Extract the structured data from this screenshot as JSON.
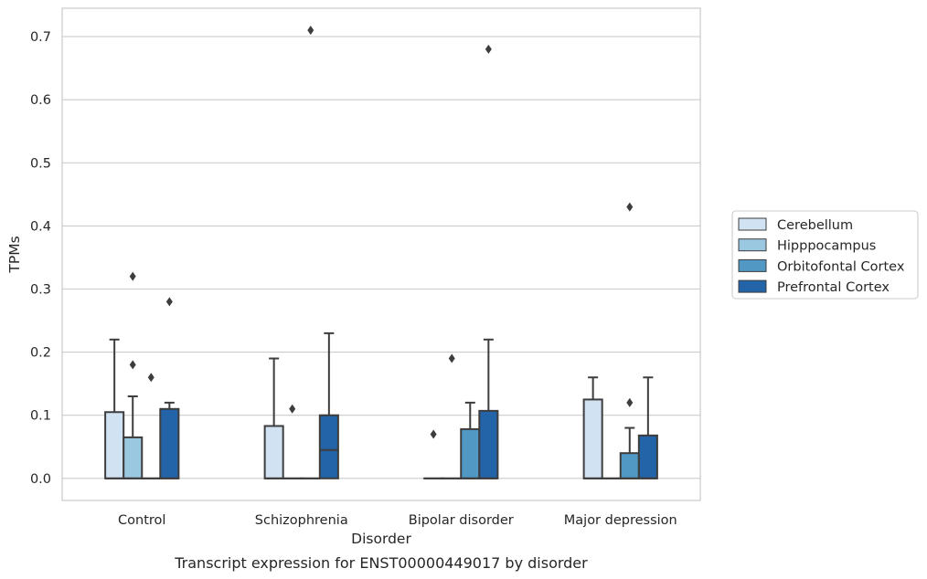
{
  "chart_data": {
    "type": "boxplot",
    "xlabel": "Disorder",
    "ylabel": "TPMs",
    "caption": "Transcript expression for ENST00000449017 by disorder",
    "ylim": [
      -0.035,
      0.745
    ],
    "yticks": [
      0.0,
      0.1,
      0.2,
      0.3,
      0.4,
      0.5,
      0.6,
      0.7
    ],
    "ytick_labels": [
      "0.0",
      "0.1",
      "0.2",
      "0.3",
      "0.4",
      "0.5",
      "0.6",
      "0.7"
    ],
    "grid": true,
    "legend_position": "right",
    "categories": [
      "Control",
      "Schizophrenia",
      "Bipolar disorder",
      "Major depression"
    ],
    "series": [
      {
        "name": "Cerebellum",
        "color": "#d1e2f2",
        "boxes": [
          {
            "q1": 0.0,
            "median": 0.0,
            "q3": 0.105,
            "whisker_low": 0.0,
            "whisker_high": 0.22,
            "outliers": []
          },
          {
            "q1": 0.0,
            "median": 0.0,
            "q3": 0.083,
            "whisker_low": 0.0,
            "whisker_high": 0.19,
            "outliers": []
          },
          {
            "q1": 0.0,
            "median": 0.0,
            "q3": 0.0,
            "whisker_low": 0.0,
            "whisker_high": 0.0,
            "outliers": [
              0.07
            ]
          },
          {
            "q1": 0.0,
            "median": 0.0,
            "q3": 0.125,
            "whisker_low": 0.0,
            "whisker_high": 0.16,
            "outliers": []
          }
        ]
      },
      {
        "name": "Hipppocampus",
        "color": "#9ac8e0",
        "boxes": [
          {
            "q1": 0.0,
            "median": 0.0,
            "q3": 0.065,
            "whisker_low": 0.0,
            "whisker_high": 0.13,
            "outliers": [
              0.18,
              0.32
            ]
          },
          {
            "q1": 0.0,
            "median": 0.0,
            "q3": 0.0,
            "whisker_low": 0.0,
            "whisker_high": 0.0,
            "outliers": [
              0.11
            ]
          },
          {
            "q1": 0.0,
            "median": 0.0,
            "q3": 0.0,
            "whisker_low": 0.0,
            "whisker_high": 0.0,
            "outliers": [
              0.19
            ]
          },
          {
            "q1": 0.0,
            "median": 0.0,
            "q3": 0.0,
            "whisker_low": 0.0,
            "whisker_high": 0.0,
            "outliers": []
          }
        ]
      },
      {
        "name": "Orbitofontal Cortex",
        "color": "#5198c4",
        "boxes": [
          {
            "q1": 0.0,
            "median": 0.0,
            "q3": 0.0,
            "whisker_low": 0.0,
            "whisker_high": 0.0,
            "outliers": [
              0.16
            ]
          },
          {
            "q1": 0.0,
            "median": 0.0,
            "q3": 0.0,
            "whisker_low": 0.0,
            "whisker_high": 0.0,
            "outliers": [
              0.71
            ]
          },
          {
            "q1": 0.0,
            "median": 0.0,
            "q3": 0.078,
            "whisker_low": 0.0,
            "whisker_high": 0.12,
            "outliers": []
          },
          {
            "q1": 0.0,
            "median": 0.0,
            "q3": 0.04,
            "whisker_low": 0.0,
            "whisker_high": 0.08,
            "outliers": [
              0.12,
              0.43
            ]
          }
        ]
      },
      {
        "name": "Prefrontal Cortex",
        "color": "#2363a8",
        "boxes": [
          {
            "q1": 0.0,
            "median": 0.0,
            "q3": 0.11,
            "whisker_low": 0.0,
            "whisker_high": 0.12,
            "outliers": [
              0.28
            ]
          },
          {
            "q1": 0.0,
            "median": 0.045,
            "q3": 0.1,
            "whisker_low": 0.0,
            "whisker_high": 0.23,
            "outliers": []
          },
          {
            "q1": 0.0,
            "median": 0.0,
            "q3": 0.107,
            "whisker_low": 0.0,
            "whisker_high": 0.22,
            "outliers": [
              0.68
            ]
          },
          {
            "q1": 0.0,
            "median": 0.0,
            "q3": 0.068,
            "whisker_low": 0.0,
            "whisker_high": 0.16,
            "outliers": []
          }
        ]
      }
    ]
  }
}
